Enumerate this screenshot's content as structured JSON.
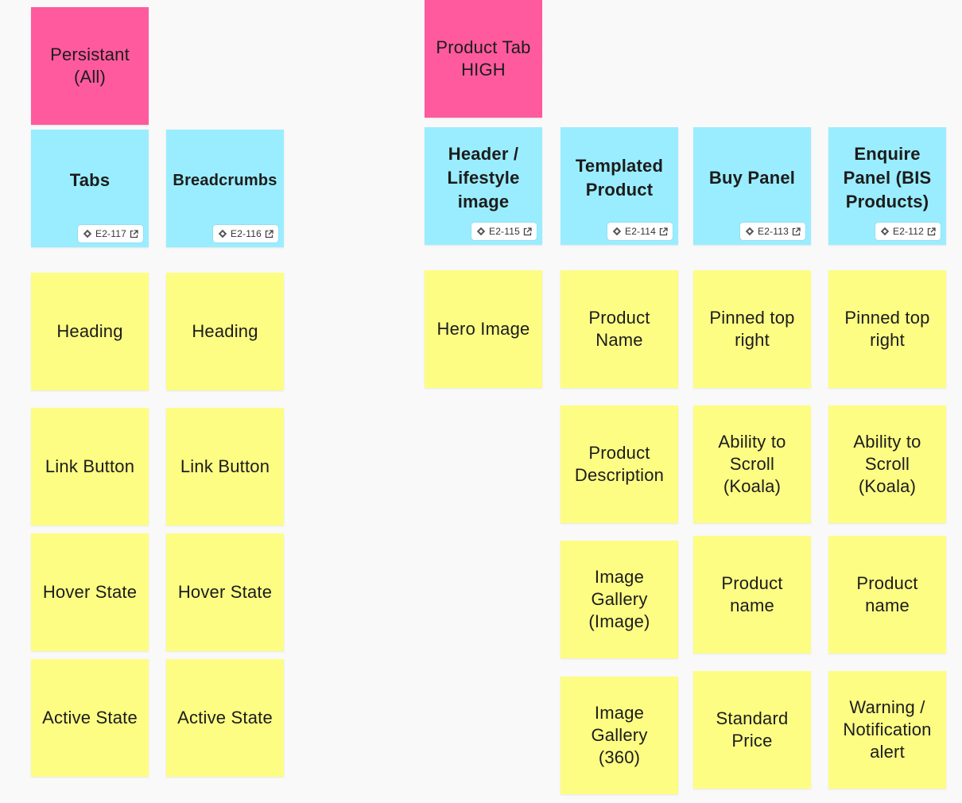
{
  "headers": {
    "persistant": "Persistant\n(All)",
    "product_tab": "Product Tab\nHIGH"
  },
  "epics": [
    {
      "label": "Tabs",
      "key": "E2-117"
    },
    {
      "label": "Breadcrumbs",
      "key": "E2-116"
    },
    {
      "label": "Header /\nLifestyle\nimage",
      "key": "E2-115"
    },
    {
      "label": "Templated\nProduct",
      "key": "E2-114"
    },
    {
      "label": "Buy Panel",
      "key": "E2-113"
    },
    {
      "label": "Enquire\nPanel (BIS\nProducts)",
      "key": "E2-112"
    }
  ],
  "tabs_items": [
    "Heading",
    "Link Button",
    "Hover State",
    "Active State"
  ],
  "breadcrumbs_items": [
    "Heading",
    "Link Button",
    "Hover State",
    "Active State"
  ],
  "header_items": [
    "Hero Image"
  ],
  "templated_items": [
    "Product\nName",
    "Product\nDescription",
    "Image\nGallery\n(Image)",
    "Image\nGallery\n(360)"
  ],
  "buy_items": [
    "Pinned top\nright",
    "Ability to\nScroll\n(Koala)",
    "Product\nname",
    "Standard\nPrice"
  ],
  "enquire_items": [
    "Pinned top\nright",
    "Ability to\nScroll\n(Koala)",
    "Product\nname",
    "Warning /\nNotification\nalert"
  ],
  "icons": {
    "issue": "jira-issue-icon",
    "link": "external-link-icon"
  },
  "colors": {
    "pink": "#ff5a9e",
    "cyan": "#9aedfe",
    "yellow": "#fdfd84"
  }
}
